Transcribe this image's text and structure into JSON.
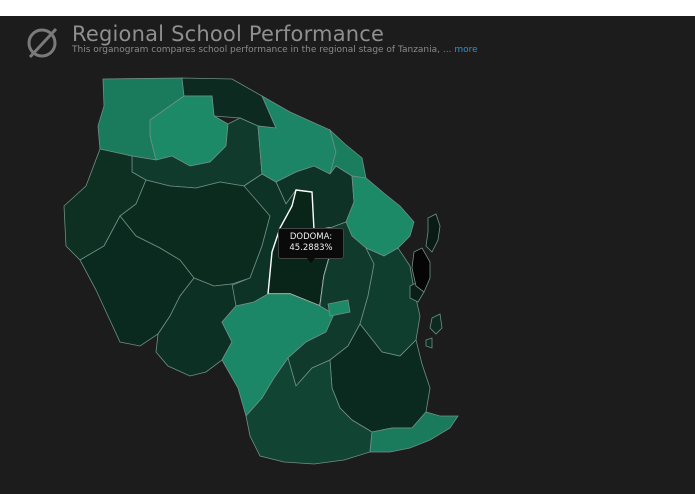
{
  "header": {
    "title": "Regional School Performance",
    "subtitle": "This organogram compares school performance in the regional stage of Tanzania, ",
    "more_link": "... more",
    "logo_icon": "slashed-circle-logo-icon"
  },
  "tooltip": {
    "region": "DODOMA:",
    "value": "45.2883%"
  },
  "colors": {
    "background": "#1c1c1c",
    "scale_low": "#0b2a1f",
    "scale_high": "#1b8a68",
    "link": "#2f8fd0"
  },
  "map": {
    "country": "Tanzania",
    "highlighted_region": "DODOMA"
  }
}
